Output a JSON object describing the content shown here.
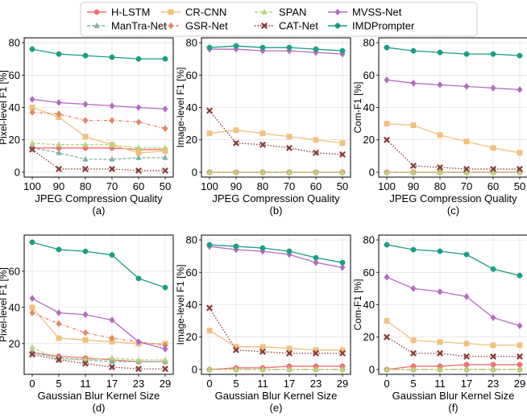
{
  "legend": {
    "entries": [
      {
        "name": "H-LSTM",
        "color": "#f36f6f",
        "marker": "circle",
        "dash": "solid"
      },
      {
        "name": "ManTra-Net",
        "color": "#7fb3a3",
        "marker": "triangle",
        "dash": "dashed"
      },
      {
        "name": "CR-CNN",
        "color": "#f2c07e",
        "marker": "square",
        "dash": "solid"
      },
      {
        "name": "GSR-Net",
        "color": "#e08767",
        "marker": "diamond",
        "dash": "dashdot"
      },
      {
        "name": "SPAN",
        "color": "#b5d67a",
        "marker": "triangle",
        "dash": "dashed"
      },
      {
        "name": "CAT-Net",
        "color": "#8a3a37",
        "marker": "x",
        "dash": "dotted"
      },
      {
        "name": "MVSS-Net",
        "color": "#b56ac1",
        "marker": "diamond",
        "dash": "solid"
      },
      {
        "name": "IMDPrompter",
        "color": "#1a9e85",
        "marker": "circle",
        "dash": "solid"
      }
    ]
  },
  "chart_data": [
    {
      "type": "line",
      "caption": "(a)",
      "xlabel": "JPEG Compression Quality",
      "ylabel": "Pixel-level F1 [%]",
      "categories": [
        "100",
        "90",
        "80",
        "70",
        "60",
        "50"
      ],
      "ylim": [
        -3,
        83
      ],
      "yticks": [
        0,
        20,
        40,
        60,
        80
      ],
      "series": [
        {
          "name": "H-LSTM",
          "values": [
            15,
            15,
            15,
            15,
            14,
            14
          ]
        },
        {
          "name": "ManTra-Net",
          "values": [
            15,
            12,
            8,
            8,
            9,
            9
          ]
        },
        {
          "name": "CR-CNN",
          "values": [
            40,
            34,
            22,
            17,
            12,
            13
          ]
        },
        {
          "name": "GSR-Net",
          "values": [
            37,
            36,
            32,
            32,
            31,
            27
          ]
        },
        {
          "name": "SPAN",
          "values": [
            18,
            17,
            17,
            17,
            15,
            15
          ]
        },
        {
          "name": "CAT-Net",
          "values": [
            14,
            2,
            2,
            2,
            1,
            1
          ]
        },
        {
          "name": "MVSS-Net",
          "values": [
            45,
            43,
            42,
            41,
            40,
            39
          ]
        },
        {
          "name": "IMDPrompter",
          "values": [
            76,
            73,
            72,
            71,
            70,
            70
          ]
        }
      ]
    },
    {
      "type": "line",
      "caption": "(b)",
      "xlabel": "JPEG Compression Quality",
      "ylabel": "Image-level F1 [%]",
      "categories": [
        "100",
        "90",
        "80",
        "70",
        "60",
        "50"
      ],
      "ylim": [
        -3,
        83
      ],
      "yticks": [
        0,
        20,
        40,
        60,
        80
      ],
      "series": [
        {
          "name": "H-LSTM",
          "values": [
            0,
            0,
            0,
            0,
            0,
            0
          ]
        },
        {
          "name": "ManTra-Net",
          "values": [
            0,
            0,
            0,
            0,
            0,
            0
          ]
        },
        {
          "name": "CR-CNN",
          "values": [
            24,
            26,
            24,
            22,
            20,
            18
          ]
        },
        {
          "name": "GSR-Net",
          "values": [
            0,
            0,
            0,
            0,
            0,
            0
          ]
        },
        {
          "name": "SPAN",
          "values": [
            0,
            0,
            0,
            0,
            0,
            0
          ]
        },
        {
          "name": "CAT-Net",
          "values": [
            38,
            18,
            17,
            15,
            12,
            11
          ]
        },
        {
          "name": "MVSS-Net",
          "values": [
            76,
            76,
            75,
            75,
            74,
            73
          ]
        },
        {
          "name": "IMDPrompter",
          "values": [
            77,
            78,
            77,
            77,
            76,
            75
          ]
        }
      ]
    },
    {
      "type": "line",
      "caption": "(c)",
      "xlabel": "JPEG Compression Quality",
      "ylabel": "Com-F1 [%]",
      "categories": [
        "100",
        "90",
        "80",
        "70",
        "60",
        "50"
      ],
      "ylim": [
        -3,
        83
      ],
      "yticks": [
        0,
        20,
        40,
        60,
        80
      ],
      "series": [
        {
          "name": "H-LSTM",
          "values": [
            0,
            0,
            0,
            0,
            0,
            0
          ]
        },
        {
          "name": "ManTra-Net",
          "values": [
            0,
            0,
            0,
            0,
            0,
            0
          ]
        },
        {
          "name": "CR-CNN",
          "values": [
            30,
            29,
            23,
            19,
            15,
            12
          ]
        },
        {
          "name": "GSR-Net",
          "values": [
            0,
            0,
            0,
            0,
            0,
            0
          ]
        },
        {
          "name": "SPAN",
          "values": [
            0,
            0,
            0,
            0,
            0,
            0
          ]
        },
        {
          "name": "CAT-Net",
          "values": [
            20,
            4,
            3,
            2,
            2,
            2
          ]
        },
        {
          "name": "MVSS-Net",
          "values": [
            57,
            55,
            54,
            53,
            52,
            51
          ]
        },
        {
          "name": "IMDPrompter",
          "values": [
            77,
            75,
            74,
            73,
            73,
            72
          ]
        }
      ]
    },
    {
      "type": "line",
      "caption": "(d)",
      "xlabel": "Gaussian Blur Kernel Size",
      "ylabel": "Pixel-level F1 [%]",
      "categories": [
        "0",
        "5",
        "11",
        "17",
        "23",
        "29"
      ],
      "ylim": [
        3,
        80
      ],
      "yticks": [
        20,
        40,
        60
      ],
      "series": [
        {
          "name": "H-LSTM",
          "values": [
            15,
            13,
            12,
            11,
            10,
            10
          ]
        },
        {
          "name": "ManTra-Net",
          "values": [
            15,
            12,
            11,
            10,
            10,
            10
          ]
        },
        {
          "name": "CR-CNN",
          "values": [
            40,
            23,
            22,
            21,
            20,
            20
          ]
        },
        {
          "name": "GSR-Net",
          "values": [
            37,
            31,
            26,
            23,
            21,
            19
          ]
        },
        {
          "name": "SPAN",
          "values": [
            18,
            11,
            11,
            12,
            11,
            11
          ]
        },
        {
          "name": "CAT-Net",
          "values": [
            14,
            11,
            9,
            7,
            6,
            6
          ]
        },
        {
          "name": "MVSS-Net",
          "values": [
            45,
            37,
            36,
            33,
            21,
            17
          ]
        },
        {
          "name": "IMDPrompter",
          "values": [
            76,
            72,
            71,
            69,
            56,
            51
          ]
        }
      ]
    },
    {
      "type": "line",
      "caption": "(e)",
      "xlabel": "Gaussian Blur Kernel Size",
      "ylabel": "Image-level F1 [%]",
      "categories": [
        "0",
        "5",
        "11",
        "17",
        "23",
        "29"
      ],
      "ylim": [
        -3,
        83
      ],
      "yticks": [
        0,
        20,
        40,
        60,
        80
      ],
      "series": [
        {
          "name": "H-LSTM",
          "values": [
            0,
            1,
            1,
            2,
            2,
            2
          ]
        },
        {
          "name": "ManTra-Net",
          "values": [
            0,
            0,
            0,
            0,
            0,
            0
          ]
        },
        {
          "name": "CR-CNN",
          "values": [
            24,
            14,
            14,
            13,
            12,
            12
          ]
        },
        {
          "name": "GSR-Net",
          "values": [
            0,
            0,
            0,
            0,
            0,
            0
          ]
        },
        {
          "name": "SPAN",
          "values": [
            0,
            0,
            0,
            0,
            0,
            0
          ]
        },
        {
          "name": "CAT-Net",
          "values": [
            38,
            12,
            11,
            10,
            10,
            10
          ]
        },
        {
          "name": "MVSS-Net",
          "values": [
            76,
            74,
            73,
            71,
            66,
            63
          ]
        },
        {
          "name": "IMDPrompter",
          "values": [
            77,
            76,
            75,
            73,
            69,
            66
          ]
        }
      ]
    },
    {
      "type": "line",
      "caption": "(f)",
      "xlabel": "Gaussian Blur Kernel Size",
      "ylabel": "Com-F1 [%]",
      "categories": [
        "0",
        "5",
        "11",
        "17",
        "23",
        "29"
      ],
      "ylim": [
        -3,
        83
      ],
      "yticks": [
        0,
        20,
        40,
        60,
        80
      ],
      "series": [
        {
          "name": "H-LSTM",
          "values": [
            0,
            2,
            2,
            3,
            3,
            3
          ]
        },
        {
          "name": "ManTra-Net",
          "values": [
            0,
            0,
            0,
            0,
            0,
            0
          ]
        },
        {
          "name": "CR-CNN",
          "values": [
            30,
            18,
            17,
            16,
            15,
            15
          ]
        },
        {
          "name": "GSR-Net",
          "values": [
            0,
            0,
            0,
            0,
            0,
            0
          ]
        },
        {
          "name": "SPAN",
          "values": [
            0,
            0,
            0,
            0,
            0,
            0
          ]
        },
        {
          "name": "CAT-Net",
          "values": [
            20,
            10,
            10,
            8,
            8,
            8
          ]
        },
        {
          "name": "MVSS-Net",
          "values": [
            57,
            50,
            48,
            45,
            32,
            27
          ]
        },
        {
          "name": "IMDPrompter",
          "values": [
            77,
            74,
            73,
            71,
            62,
            58
          ]
        }
      ]
    }
  ]
}
